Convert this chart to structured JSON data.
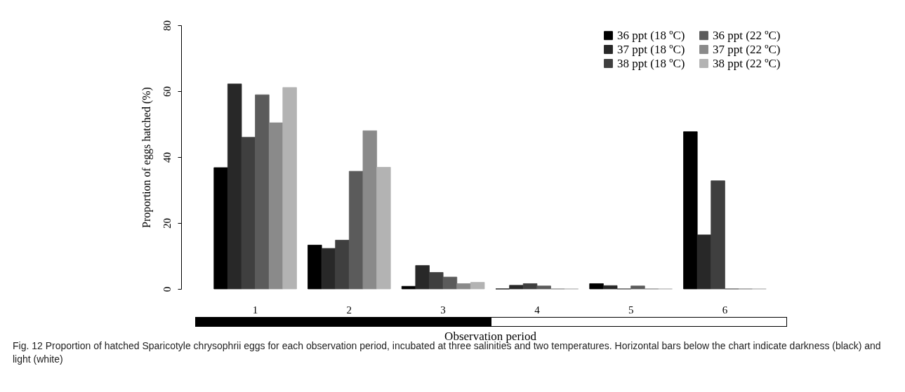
{
  "chart_data": {
    "type": "bar",
    "xlabel": "Observation period",
    "ylabel": "Proportion of eggs hatched (%)",
    "categories": [
      "1",
      "2",
      "3",
      "4",
      "5",
      "6"
    ],
    "series": [
      {
        "name": "36 ppt (18 ºC)",
        "color": "#000000",
        "values": [
          36.8,
          13.3,
          0.8,
          0,
          1.6,
          47.7
        ]
      },
      {
        "name": "37 ppt (18 ºC)",
        "color": "#282828",
        "values": [
          62.2,
          12.3,
          7.1,
          1.1,
          1.0,
          16.4
        ]
      },
      {
        "name": "38 ppt (18 ºC)",
        "color": "#3f3f3f",
        "values": [
          46.0,
          14.8,
          5.0,
          1.6,
          0,
          32.8
        ]
      },
      {
        "name": "36 ppt (22 ºC)",
        "color": "#5b5b5b",
        "values": [
          58.9,
          35.7,
          3.6,
          0.9,
          0.9,
          0
        ]
      },
      {
        "name": "37 ppt (22 ºC)",
        "color": "#8a8a8a",
        "values": [
          50.4,
          48.0,
          1.6,
          0,
          0,
          0
        ]
      },
      {
        "name": "38 ppt (22 ºC)",
        "color": "#b3b3b3",
        "values": [
          61.1,
          36.9,
          2.0,
          0,
          0,
          0
        ]
      }
    ],
    "ylim": [
      0,
      80
    ],
    "yticks": [
      0,
      20,
      40,
      60,
      80
    ],
    "grid": false,
    "legend": "top right",
    "annotations": [
      "Fig. 12 Proportion of hatched Sparicotyle chrysophrii eggs for each observation period, incubated at three salinities and two temperatures. Horizontal bars below the chart indicate darkness (black) and light (white)"
    ]
  }
}
